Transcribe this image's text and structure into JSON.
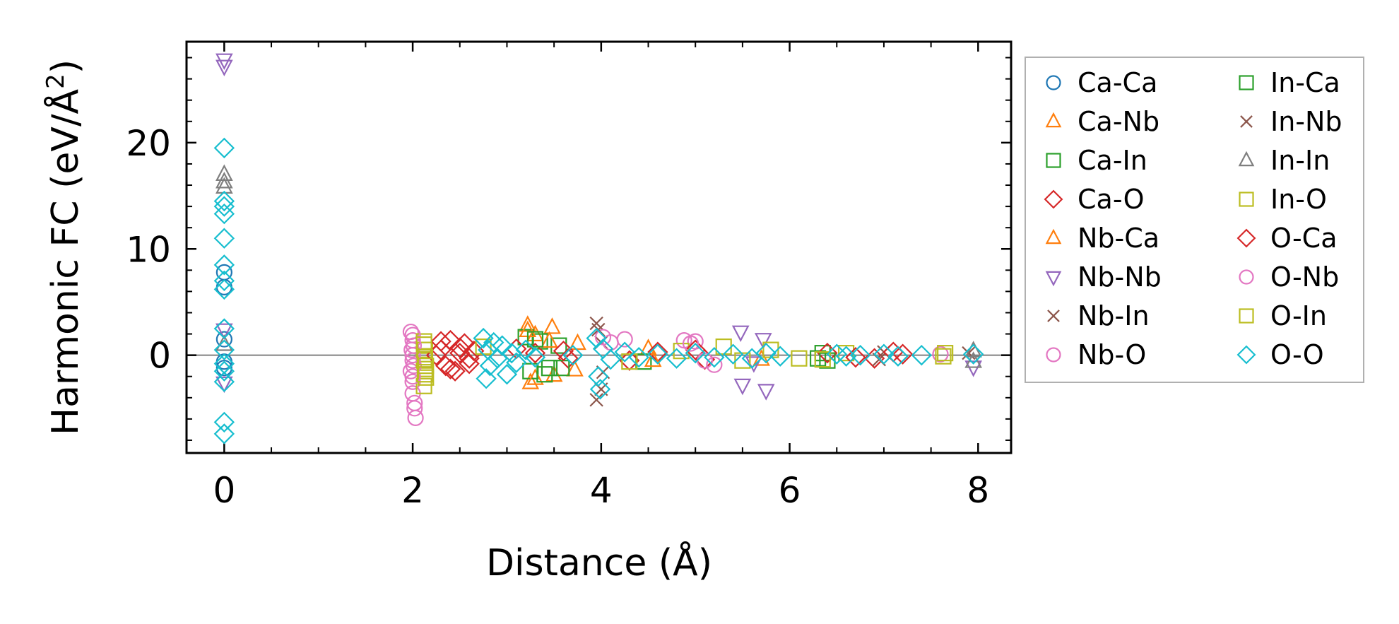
{
  "chart_data": {
    "type": "scatter",
    "xlabel": "Distance (Å)",
    "ylabel_main": "Harmonic FC (eV/Å",
    "ylabel_sup": "2",
    "ylabel_tail": ")",
    "xlim": [
      -0.4,
      8.35
    ],
    "ylim": [
      -9.2,
      29.5
    ],
    "xticks": [
      0,
      2,
      4,
      6,
      8
    ],
    "yticks": [
      0,
      10,
      20
    ],
    "xminor": [
      -0.5,
      0.5,
      1,
      1.5,
      2.5,
      3,
      3.5,
      4.5,
      5,
      5.5,
      6.5,
      7,
      7.5,
      8.5
    ],
    "yminor": [
      -8,
      -6,
      -4,
      -2,
      2,
      4,
      6,
      8,
      12,
      14,
      16,
      18,
      22,
      24,
      26,
      28
    ],
    "zero_line": true,
    "legend_position": "outside-right",
    "series": [
      {
        "name": "Ca-Ca",
        "marker": "circle",
        "color": "#1f77b4",
        "points": [
          [
            0,
            7.8
          ],
          [
            0,
            6.4
          ],
          [
            0,
            1.5
          ],
          [
            0,
            -0.6
          ],
          [
            0,
            -1.2
          ]
        ]
      },
      {
        "name": "Ca-Nb",
        "marker": "triangle-up",
        "color": "#ff7f0e",
        "points": [
          [
            3.22,
            2.8
          ],
          [
            3.25,
            -2.6
          ],
          [
            3.3,
            1.9
          ],
          [
            3.48,
            2.6
          ],
          [
            3.5,
            -1.9
          ],
          [
            3.72,
            -1.4
          ],
          [
            4.5,
            0.6
          ],
          [
            5.7,
            -0.4
          ]
        ]
      },
      {
        "name": "Ca-In",
        "marker": "square",
        "color": "#2ca02c",
        "points": [
          [
            3.2,
            1.7
          ],
          [
            3.25,
            -1.5
          ],
          [
            3.35,
            1.3
          ],
          [
            3.45,
            -1.2
          ],
          [
            3.55,
            0.9
          ],
          [
            4.45,
            -0.6
          ],
          [
            6.3,
            -0.3
          ],
          [
            6.35,
            0.2
          ]
        ]
      },
      {
        "name": "Ca-O",
        "marker": "diamond",
        "color": "#d62728",
        "points": [
          [
            2.3,
            0.5
          ],
          [
            2.35,
            -1.0
          ],
          [
            2.4,
            1.4
          ],
          [
            2.45,
            -1.5
          ],
          [
            2.5,
            0.2
          ],
          [
            2.55,
            1.1
          ],
          [
            2.6,
            -0.8
          ],
          [
            2.65,
            0.4
          ],
          [
            3.3,
            0.2
          ],
          [
            3.65,
            -0.3
          ],
          [
            4.6,
            0.3
          ],
          [
            5.1,
            -0.4
          ],
          [
            6.4,
            0.2
          ],
          [
            6.9,
            -0.3
          ],
          [
            7.2,
            0.1
          ]
        ]
      },
      {
        "name": "Nb-Ca",
        "marker": "triangle-up",
        "color": "#ff7f0e",
        "points": [
          [
            3.22,
            2.3
          ],
          [
            3.3,
            -2.2
          ],
          [
            3.45,
            1.3
          ],
          [
            3.75,
            1.1
          ],
          [
            4.55,
            -0.5
          ]
        ]
      },
      {
        "name": "Nb-Nb",
        "marker": "triangle-down",
        "color": "#9467bd",
        "points": [
          [
            0,
            27.8
          ],
          [
            0,
            27.2
          ],
          [
            0,
            2.4
          ],
          [
            0,
            -2.6
          ],
          [
            5.48,
            2.2
          ],
          [
            5.5,
            -2.8
          ],
          [
            5.62,
            -0.7
          ],
          [
            5.72,
            1.5
          ],
          [
            5.75,
            -3.3
          ],
          [
            7.95,
            -1.1
          ]
        ]
      },
      {
        "name": "Nb-In",
        "marker": "cross",
        "color": "#8c564b",
        "points": [
          [
            3.95,
            3.0
          ],
          [
            3.95,
            -4.2
          ],
          [
            4.0,
            1.2
          ],
          [
            4.02,
            -1.6
          ],
          [
            6.95,
            -0.4
          ],
          [
            7.9,
            0.2
          ]
        ]
      },
      {
        "name": "Nb-O",
        "marker": "circle",
        "color": "#e377c2",
        "points": [
          [
            1.98,
            2.2
          ],
          [
            2.0,
            1.4
          ],
          [
            1.99,
            0.5
          ],
          [
            2.0,
            -0.5
          ],
          [
            1.98,
            -1.5
          ],
          [
            2.0,
            -2.5
          ],
          [
            2.0,
            -3.6
          ],
          [
            2.02,
            -5.0
          ],
          [
            2.03,
            -5.9
          ],
          [
            4.02,
            1.7
          ],
          [
            4.25,
            1.5
          ],
          [
            4.88,
            1.4
          ],
          [
            5.0,
            1.3
          ],
          [
            5.2,
            -0.9
          ],
          [
            7.6,
            0.1
          ]
        ]
      },
      {
        "name": "In-Ca",
        "marker": "square",
        "color": "#2ca02c",
        "points": [
          [
            3.3,
            1.5
          ],
          [
            3.4,
            -1.8
          ],
          [
            3.58,
            -1.2
          ],
          [
            6.4,
            -0.5
          ]
        ]
      },
      {
        "name": "In-Nb",
        "marker": "cross",
        "color": "#8c564b",
        "points": [
          [
            3.97,
            2.4
          ],
          [
            4.0,
            -3.2
          ],
          [
            7.0,
            0.3
          ]
        ]
      },
      {
        "name": "In-In",
        "marker": "triangle-up",
        "color": "#7f7f7f",
        "points": [
          [
            0,
            17.0
          ],
          [
            0,
            16.3
          ],
          [
            0,
            15.8
          ],
          [
            0,
            1.0
          ],
          [
            7.95,
            -0.6
          ],
          [
            7.95,
            0.4
          ]
        ]
      },
      {
        "name": "In-O",
        "marker": "square",
        "color": "#bcbd22",
        "points": [
          [
            2.12,
            1.3
          ],
          [
            2.13,
            0.5
          ],
          [
            2.12,
            -0.5
          ],
          [
            2.13,
            -1.3
          ],
          [
            2.14,
            -2.1
          ],
          [
            2.12,
            -2.9
          ],
          [
            2.75,
            0.8
          ],
          [
            4.85,
            0.4
          ],
          [
            5.3,
            0.8
          ],
          [
            5.8,
            0.5
          ],
          [
            6.1,
            -0.3
          ],
          [
            6.6,
            0.2
          ],
          [
            7.63,
            -0.1
          ],
          [
            7.65,
            0.2
          ]
        ]
      },
      {
        "name": "O-Ca",
        "marker": "diamond",
        "color": "#d62728",
        "points": [
          [
            2.25,
            0.0
          ],
          [
            2.3,
            1.3
          ],
          [
            2.4,
            -1.3
          ],
          [
            2.5,
            0.7
          ],
          [
            2.6,
            -0.3
          ],
          [
            3.1,
            0.6
          ],
          [
            3.6,
            0.4
          ],
          [
            4.3,
            -0.5
          ],
          [
            5.0,
            0.5
          ],
          [
            6.7,
            -0.2
          ],
          [
            7.1,
            0.3
          ]
        ]
      },
      {
        "name": "O-Nb",
        "marker": "circle",
        "color": "#e377c2",
        "points": [
          [
            2.0,
            1.9
          ],
          [
            2.01,
            0.9
          ],
          [
            2.0,
            0.0
          ],
          [
            2.01,
            -1.0
          ],
          [
            2.0,
            -2.0
          ],
          [
            2.02,
            -4.5
          ],
          [
            4.1,
            1.2
          ],
          [
            4.95,
            1.1
          ],
          [
            5.1,
            -0.5
          ]
        ]
      },
      {
        "name": "O-In",
        "marker": "square",
        "color": "#bcbd22",
        "points": [
          [
            2.12,
            1.0
          ],
          [
            2.13,
            -0.2
          ],
          [
            2.14,
            -1.0
          ],
          [
            2.13,
            -1.8
          ],
          [
            4.3,
            -0.6
          ],
          [
            5.5,
            -0.5
          ],
          [
            6.35,
            -0.4
          ]
        ]
      },
      {
        "name": "O-O",
        "marker": "diamond",
        "color": "#17becf",
        "points": [
          [
            0,
            19.5
          ],
          [
            0,
            14.5
          ],
          [
            0,
            14.0
          ],
          [
            0,
            13.3
          ],
          [
            0,
            11.0
          ],
          [
            0,
            8.5
          ],
          [
            0,
            7.0
          ],
          [
            0,
            6.2
          ],
          [
            0,
            2.5
          ],
          [
            0,
            0.5
          ],
          [
            0,
            -0.8
          ],
          [
            0,
            -1.5
          ],
          [
            0,
            -2.5
          ],
          [
            0,
            -6.3
          ],
          [
            0,
            -7.4
          ],
          [
            2.75,
            1.6
          ],
          [
            2.78,
            -2.2
          ],
          [
            2.8,
            0.5
          ],
          [
            2.82,
            -1.0
          ],
          [
            2.86,
            1.2
          ],
          [
            2.9,
            -0.3
          ],
          [
            2.95,
            0.9
          ],
          [
            3.0,
            -1.8
          ],
          [
            3.05,
            0.2
          ],
          [
            3.1,
            -0.7
          ],
          [
            3.2,
            0.5
          ],
          [
            3.3,
            -0.2
          ],
          [
            3.7,
            0.0
          ],
          [
            3.95,
            1.6
          ],
          [
            3.97,
            -2.0
          ],
          [
            3.99,
            -3.2
          ],
          [
            4.02,
            0.6
          ],
          [
            4.1,
            -0.4
          ],
          [
            4.25,
            0.3
          ],
          [
            4.4,
            -0.2
          ],
          [
            4.6,
            0.1
          ],
          [
            4.8,
            -0.3
          ],
          [
            5.0,
            0.2
          ],
          [
            5.2,
            -0.2
          ],
          [
            5.4,
            0.1
          ],
          [
            5.6,
            -0.3
          ],
          [
            5.75,
            0.2
          ],
          [
            5.9,
            -0.1
          ],
          [
            6.5,
            0.1
          ],
          [
            6.6,
            -0.1
          ],
          [
            6.75,
            0.0
          ],
          [
            7.0,
            0.1
          ],
          [
            7.15,
            -0.1
          ],
          [
            7.4,
            0.0
          ],
          [
            7.95,
            0.1
          ]
        ]
      }
    ]
  }
}
